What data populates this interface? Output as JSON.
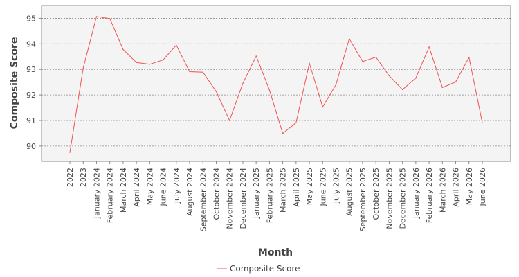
{
  "chart_data": {
    "type": "line",
    "title": "",
    "xlabel": "Month",
    "ylabel": "Composite Score",
    "categories": [
      "2022",
      "2023",
      "January 2024",
      "February 2024",
      "March 2024",
      "April 2024",
      "May 2024",
      "June 2024",
      "July 2024",
      "August 2024",
      "September 2024",
      "October 2024",
      "November 2024",
      "December 2024",
      "January 2025",
      "February 2025",
      "March 2025",
      "April 2025",
      "May 2025",
      "June 2025",
      "July 2025",
      "August 2025",
      "September 2025",
      "October 2025",
      "November 2025",
      "December 2025",
      "January 2026",
      "February 2026",
      "March 2026",
      "April 2026",
      "May 2026",
      "June 2026"
    ],
    "series": [
      {
        "name": "Composite Score",
        "color": "#f05050",
        "values": [
          89.75,
          93.05,
          95.07,
          94.99,
          93.78,
          93.27,
          93.2,
          93.37,
          93.95,
          92.91,
          92.89,
          92.13,
          91.0,
          92.45,
          93.52,
          92.19,
          90.49,
          90.91,
          93.24,
          91.53,
          92.4,
          94.2,
          93.31,
          93.48,
          92.75,
          92.21,
          92.66,
          93.88,
          92.29,
          92.51,
          93.47,
          90.91
        ]
      }
    ],
    "yticks": [
      90,
      91,
      92,
      93,
      94,
      95
    ],
    "ylim": [
      89.4,
      95.5
    ],
    "grid": true,
    "legend": "bottom-center",
    "plot_background": "#f4f4f4",
    "grid_color": "#888888",
    "axis_color": "#888888"
  }
}
